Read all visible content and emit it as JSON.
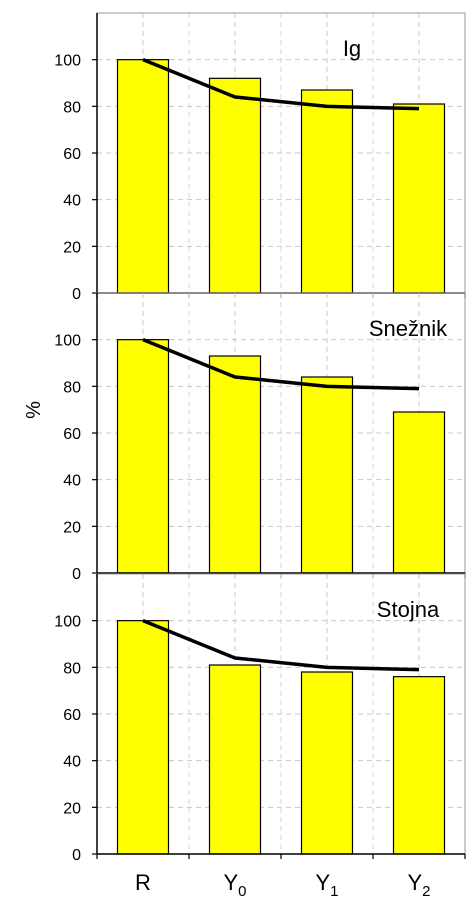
{
  "chart_data": [
    {
      "type": "bar",
      "title": "Ig",
      "categories": [
        {
          "base": "R",
          "sub": ""
        },
        {
          "base": "Y",
          "sub": "0"
        },
        {
          "base": "Y",
          "sub": "1"
        },
        {
          "base": "Y",
          "sub": "2"
        }
      ],
      "series": [
        {
          "values": [
            100,
            92,
            87,
            81
          ],
          "color": "#ffff00"
        },
        {
          "type": "line",
          "values": [
            100,
            84,
            80,
            79
          ],
          "color": "#000000"
        }
      ],
      "yticks": [
        "0",
        "20",
        "40",
        "60",
        "80",
        "100"
      ],
      "ylim": [
        0,
        120
      ],
      "grid": true
    },
    {
      "type": "bar",
      "title": "Snežnik",
      "categories": [
        {
          "base": "R",
          "sub": ""
        },
        {
          "base": "Y",
          "sub": "0"
        },
        {
          "base": "Y",
          "sub": "1"
        },
        {
          "base": "Y",
          "sub": "2"
        }
      ],
      "series": [
        {
          "values": [
            100,
            93,
            84,
            69
          ],
          "color": "#ffff00"
        },
        {
          "type": "line",
          "values": [
            100,
            84,
            80,
            79
          ],
          "color": "#000000"
        }
      ],
      "yticks": [
        "0",
        "20",
        "40",
        "60",
        "80",
        "100"
      ],
      "ylim": [
        0,
        120
      ],
      "grid": true
    },
    {
      "type": "bar",
      "title": "Stojna",
      "categories": [
        {
          "base": "R",
          "sub": ""
        },
        {
          "base": "Y",
          "sub": "0"
        },
        {
          "base": "Y",
          "sub": "1"
        },
        {
          "base": "Y",
          "sub": "2"
        }
      ],
      "series": [
        {
          "values": [
            100,
            81,
            78,
            76
          ],
          "color": "#ffff00"
        },
        {
          "type": "line",
          "values": [
            100,
            84,
            80,
            79
          ],
          "color": "#000000"
        }
      ],
      "yticks": [
        "0",
        "20",
        "40",
        "60",
        "80",
        "100"
      ],
      "ylim": [
        0,
        120
      ],
      "grid": true
    }
  ],
  "ylabel": "%"
}
